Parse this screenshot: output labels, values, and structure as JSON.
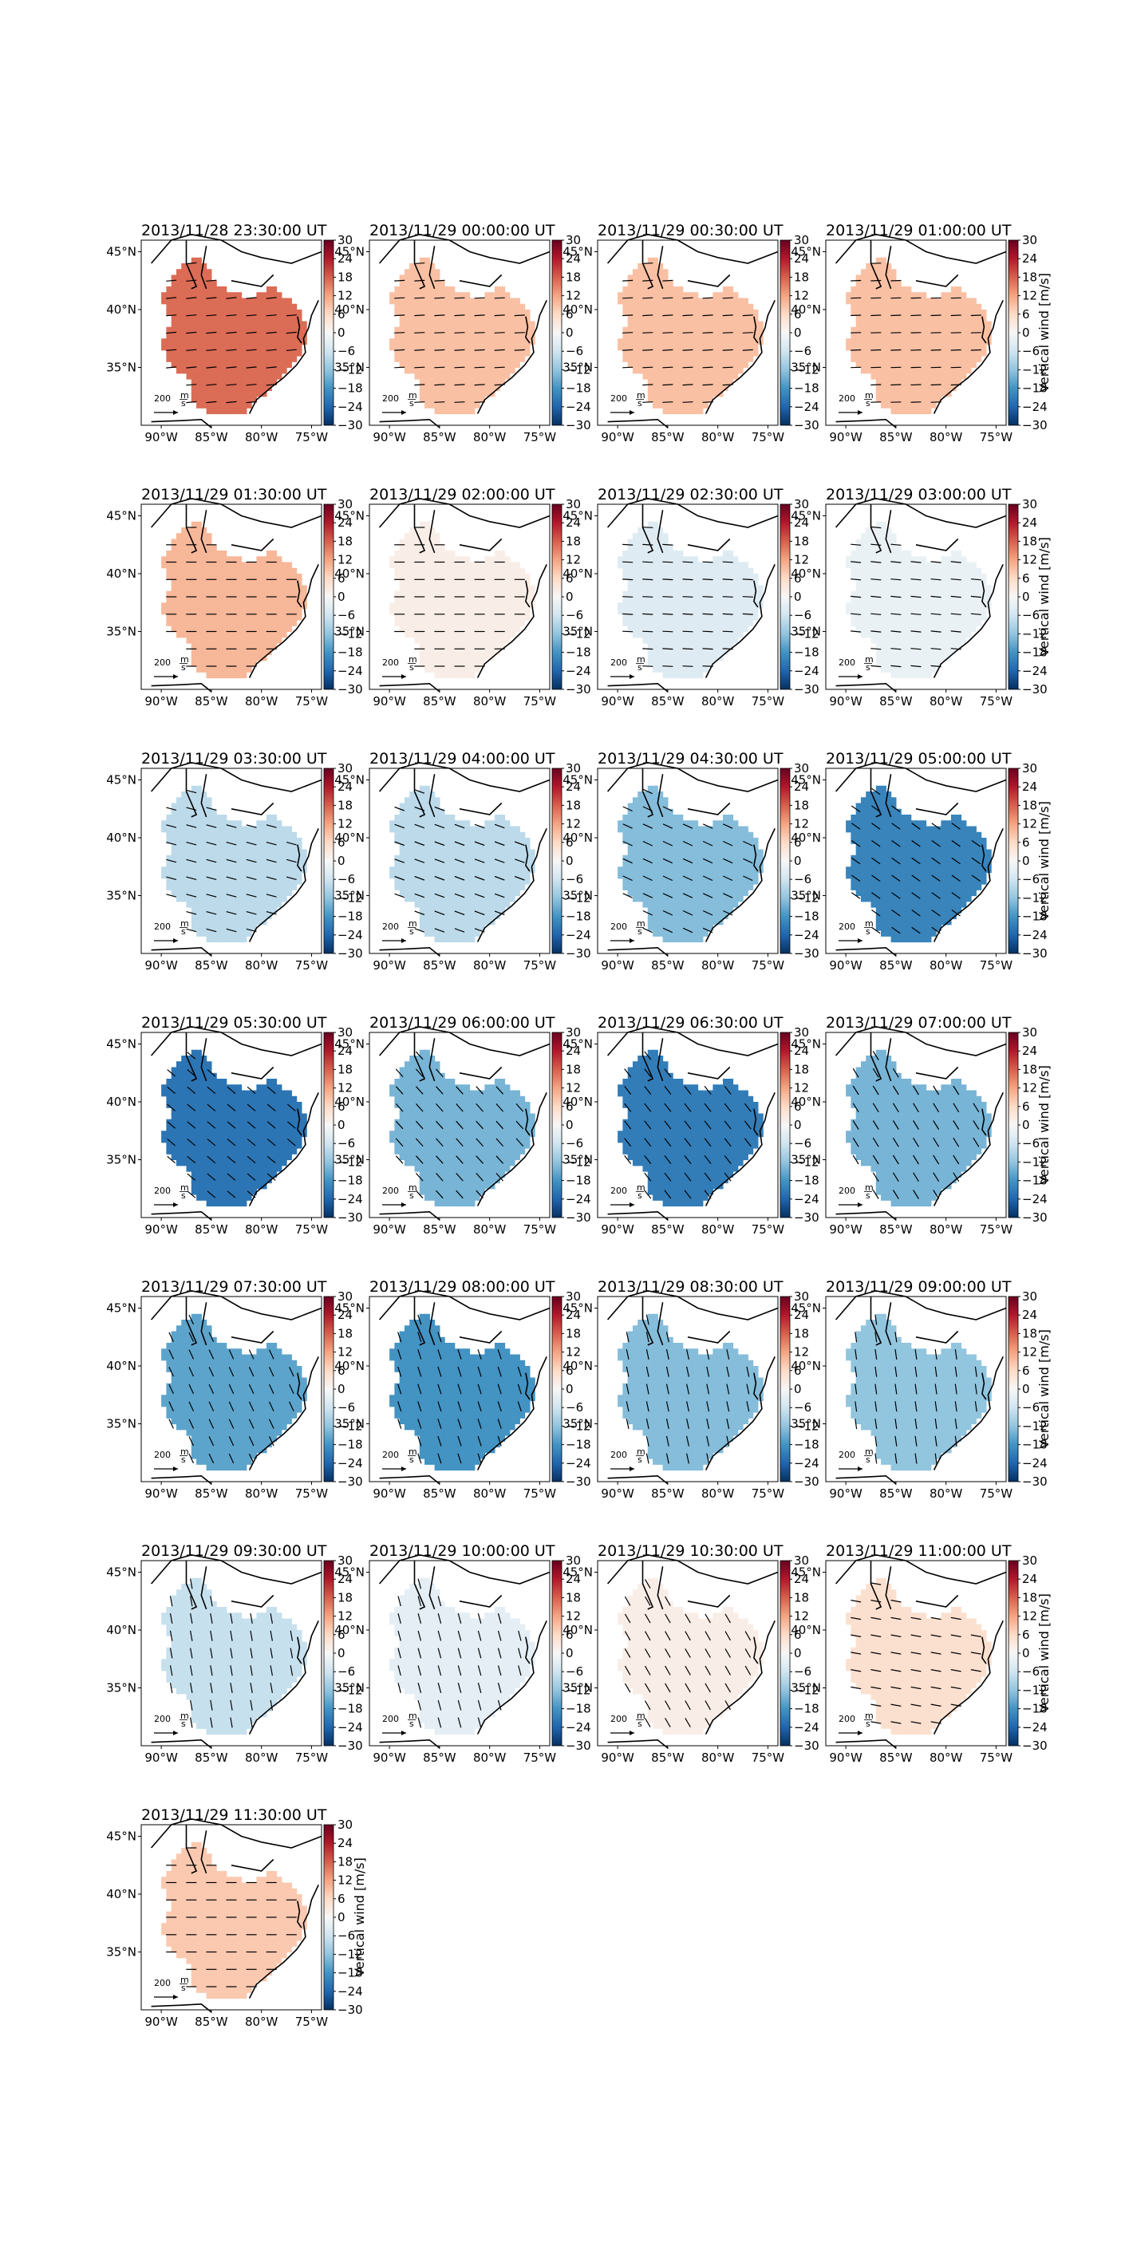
{
  "figure": {
    "panel_titles": [
      "2013/11/28 23:30:00 UT",
      "2013/11/29 00:00:00 UT",
      "2013/11/29 00:30:00 UT",
      "2013/11/29 01:00:00 UT",
      "2013/11/29 01:30:00 UT",
      "2013/11/29 02:00:00 UT",
      "2013/11/29 02:30:00 UT",
      "2013/11/29 03:00:00 UT",
      "2013/11/29 03:30:00 UT",
      "2013/11/29 04:00:00 UT",
      "2013/11/29 04:30:00 UT",
      "2013/11/29 05:00:00 UT",
      "2013/11/29 05:30:00 UT",
      "2013/11/29 06:00:00 UT",
      "2013/11/29 06:30:00 UT",
      "2013/11/29 07:00:00 UT",
      "2013/11/29 07:30:00 UT",
      "2013/11/29 08:00:00 UT",
      "2013/11/29 08:30:00 UT",
      "2013/11/29 09:00:00 UT",
      "2013/11/29 09:30:00 UT",
      "2013/11/29 10:00:00 UT",
      "2013/11/29 10:30:00 UT",
      "2013/11/29 11:00:00 UT",
      "2013/11/29 11:30:00 UT"
    ],
    "colorbar_label": "Vertical wind [m/s]",
    "colorbar_ticks": [
      "30",
      "24",
      "18",
      "12",
      "6",
      "0",
      "−6",
      "−12",
      "−18",
      "−24",
      "−30"
    ],
    "lon_ticks": [
      "90°W",
      "85°W",
      "80°W",
      "75°W"
    ],
    "lat_ticks": [
      "45°N",
      "40°N",
      "35°N"
    ],
    "reference_vector_label": "200",
    "reference_vector_unit": "m/s",
    "colormap": "RdBu_r"
  },
  "chart_data": {
    "type": "heatmap",
    "variable": "Vertical wind",
    "units": "m/s",
    "colorbar_range": [
      -30,
      30
    ],
    "lon_range": [
      -92,
      -74
    ],
    "lat_range": [
      30,
      46
    ],
    "reference_vector_m_per_s": 200,
    "frames": [
      {
        "time": "2013/11/28 23:30:00 UT",
        "vertical_wind": 17,
        "vector_dir_deg": 5
      },
      {
        "time": "2013/11/29 00:00:00 UT",
        "vertical_wind": 9,
        "vector_dir_deg": 3
      },
      {
        "time": "2013/11/29 00:30:00 UT",
        "vertical_wind": 9,
        "vector_dir_deg": 3
      },
      {
        "time": "2013/11/29 01:00:00 UT",
        "vertical_wind": 9,
        "vector_dir_deg": 2
      },
      {
        "time": "2013/11/29 01:30:00 UT",
        "vertical_wind": 10,
        "vector_dir_deg": 0
      },
      {
        "time": "2013/11/29 02:00:00 UT",
        "vertical_wind": 2,
        "vector_dir_deg": 0
      },
      {
        "time": "2013/11/29 02:30:00 UT",
        "vertical_wind": -4,
        "vector_dir_deg": -3
      },
      {
        "time": "2013/11/29 03:00:00 UT",
        "vertical_wind": -2,
        "vector_dir_deg": -5
      },
      {
        "time": "2013/11/29 03:30:00 UT",
        "vertical_wind": -8,
        "vector_dir_deg": -15
      },
      {
        "time": "2013/11/29 04:00:00 UT",
        "vertical_wind": -8,
        "vector_dir_deg": -20
      },
      {
        "time": "2013/11/29 04:30:00 UT",
        "vertical_wind": -13,
        "vector_dir_deg": -25
      },
      {
        "time": "2013/11/29 05:00:00 UT",
        "vertical_wind": -20,
        "vector_dir_deg": -35
      },
      {
        "time": "2013/11/29 05:30:00 UT",
        "vertical_wind": -22,
        "vector_dir_deg": -40
      },
      {
        "time": "2013/11/29 06:00:00 UT",
        "vertical_wind": -14,
        "vector_dir_deg": -48
      },
      {
        "time": "2013/11/29 06:30:00 UT",
        "vertical_wind": -21,
        "vector_dir_deg": -52
      },
      {
        "time": "2013/11/29 07:00:00 UT",
        "vertical_wind": -14,
        "vector_dir_deg": -58
      },
      {
        "time": "2013/11/29 07:30:00 UT",
        "vertical_wind": -16,
        "vector_dir_deg": -65
      },
      {
        "time": "2013/11/29 08:00:00 UT",
        "vertical_wind": -18,
        "vector_dir_deg": -72
      },
      {
        "time": "2013/11/29 08:30:00 UT",
        "vertical_wind": -13,
        "vector_dir_deg": -78
      },
      {
        "time": "2013/11/29 09:00:00 UT",
        "vertical_wind": -12,
        "vector_dir_deg": -82
      },
      {
        "time": "2013/11/29 09:30:00 UT",
        "vertical_wind": -7,
        "vector_dir_deg": -80
      },
      {
        "time": "2013/11/29 10:00:00 UT",
        "vertical_wind": -3,
        "vector_dir_deg": -75
      },
      {
        "time": "2013/11/29 10:30:00 UT",
        "vertical_wind": 2,
        "vector_dir_deg": -60
      },
      {
        "time": "2013/11/29 11:00:00 UT",
        "vertical_wind": 5,
        "vector_dir_deg": -10
      },
      {
        "time": "2013/11/29 11:30:00 UT",
        "vertical_wind": 8,
        "vector_dir_deg": 0
      }
    ]
  }
}
